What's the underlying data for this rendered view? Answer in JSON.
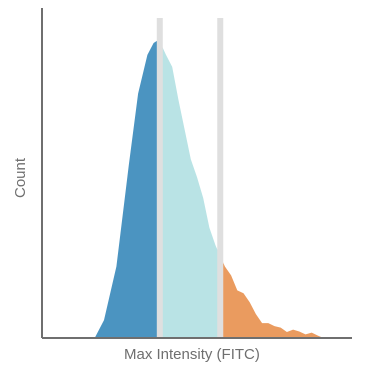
{
  "chart_data": {
    "type": "area",
    "title": "",
    "xlabel": "Max Intensity (FITC)",
    "ylabel": "Count",
    "xlim": [
      0,
      100
    ],
    "ylim": [
      0,
      100
    ],
    "grid": false,
    "legend": false,
    "gates": [
      38.0,
      57.5
    ],
    "regions": [
      {
        "color": "#4b94c1",
        "x_start": 17.0,
        "x_end": 38.0
      },
      {
        "color": "#b9e3e5",
        "x_start": 38.0,
        "x_end": 57.5
      },
      {
        "color": "#ea9b5f",
        "x_start": 57.5,
        "x_end": 90.8
      }
    ],
    "gate_color": "#dfdfdf",
    "axis_color": "#6f6f6f",
    "x": [
      17.0,
      20.0,
      24.0,
      28.0,
      31.0,
      34.0,
      36.0,
      37.5,
      38.0,
      40.0,
      42.0,
      44.0,
      46.0,
      48.0,
      50.0,
      52.0,
      54.0,
      56.0,
      57.5,
      59.0,
      61.0,
      63.0,
      65.0,
      67.0,
      69.0,
      71.0,
      73.0,
      75.0,
      77.0,
      79.0,
      81.0,
      83.0,
      85.0,
      87.0,
      89.0,
      90.8
    ],
    "y": [
      0.0,
      6.0,
      24.0,
      58.0,
      82.0,
      95.0,
      99.0,
      100.0,
      99.5,
      95.0,
      91.0,
      80.0,
      70.0,
      60.0,
      54.0,
      47.0,
      37.0,
      31.0,
      27.5,
      24.0,
      21.0,
      16.0,
      15.0,
      12.0,
      8.0,
      5.0,
      5.0,
      4.0,
      3.5,
      2.0,
      2.8,
      2.2,
      1.2,
      1.8,
      0.8,
      0.0
    ]
  }
}
